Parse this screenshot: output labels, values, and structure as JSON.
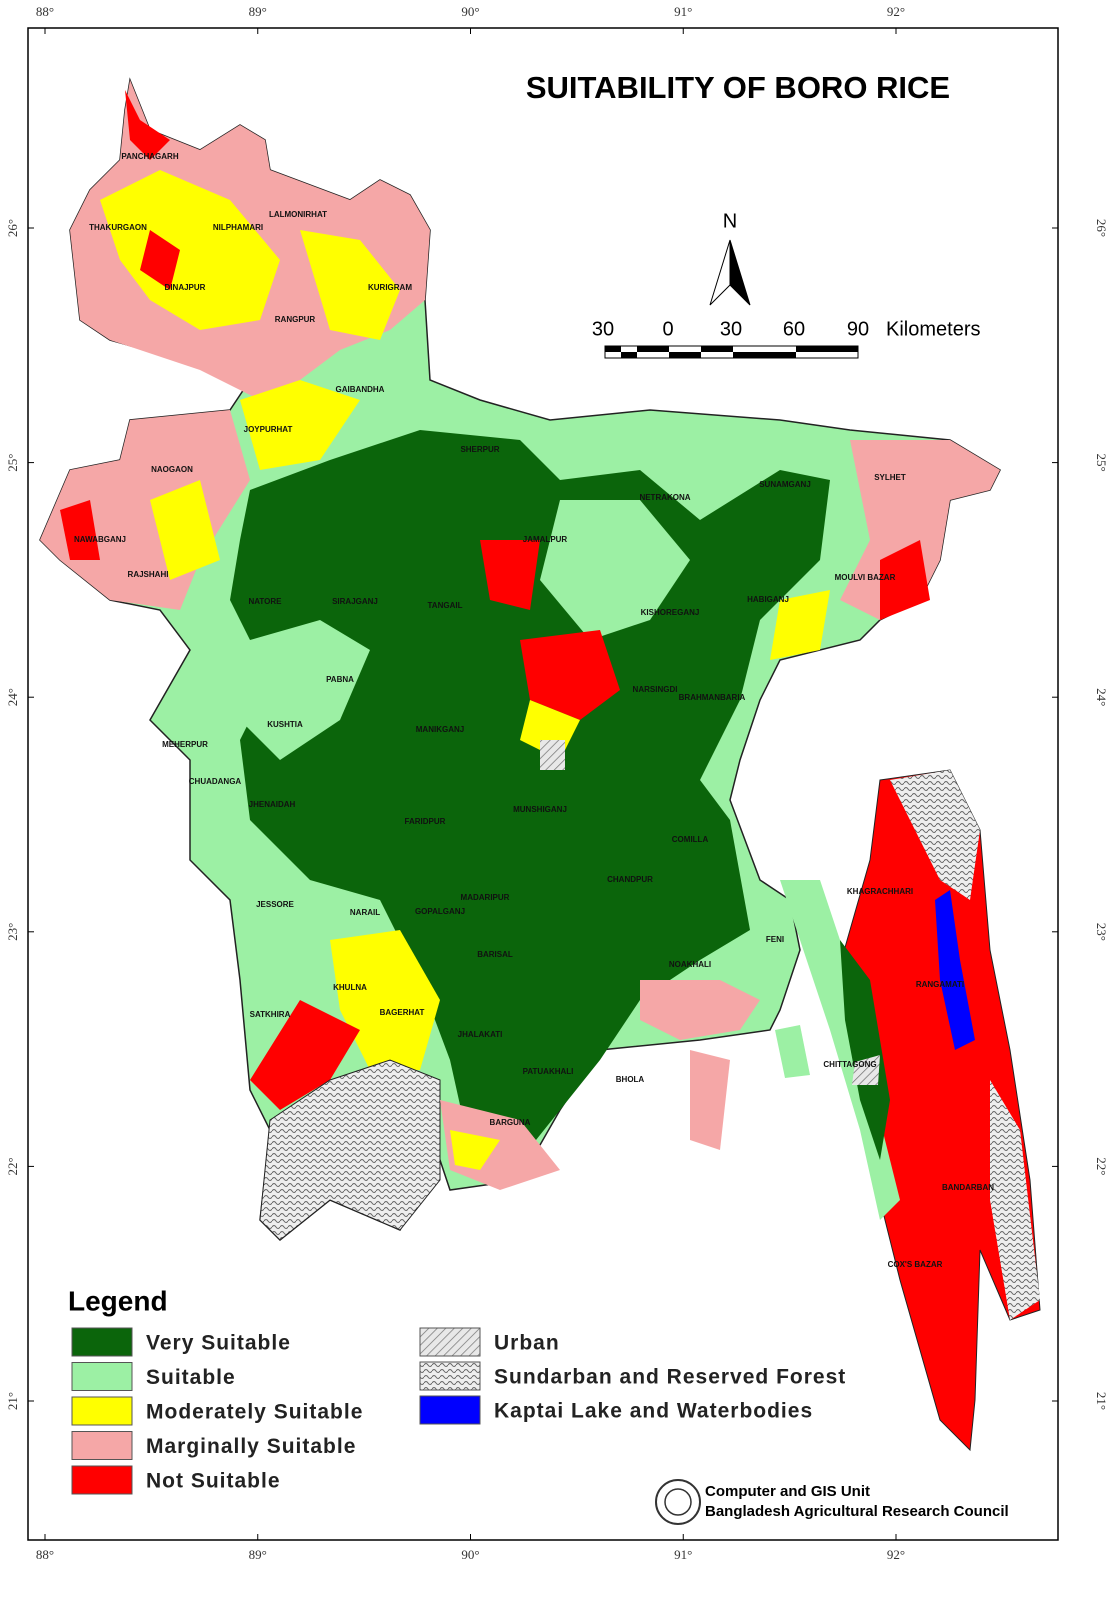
{
  "map": {
    "title": "SUITABILITY OF BORO RICE",
    "north": "N",
    "scale": {
      "labels": [
        "30",
        "0",
        "30",
        "60",
        "90"
      ],
      "unit": "Kilometers"
    },
    "lon_ticks": [
      {
        "value": 88,
        "label": "88°"
      },
      {
        "value": 89,
        "label": "89°"
      },
      {
        "value": 90,
        "label": "90°"
      },
      {
        "value": 91,
        "label": "91°"
      },
      {
        "value": 92,
        "label": "92°"
      }
    ],
    "lat_ticks": [
      {
        "value": 26,
        "label": "26°"
      },
      {
        "value": 25,
        "label": "25°"
      },
      {
        "value": 24,
        "label": "24°"
      },
      {
        "value": 23,
        "label": "23°"
      },
      {
        "value": 22,
        "label": "22°"
      },
      {
        "value": 21,
        "label": "21°"
      }
    ],
    "districts": [
      "PANCHAGARH",
      "THAKURGAON",
      "NILPHAMARI",
      "LALMONIRHAT",
      "DINAJPUR",
      "KURIGRAM",
      "RANGPUR",
      "GAIBANDHA",
      "JOYPURHAT",
      "NAOGAON",
      "SHERPUR",
      "NETRAKONA",
      "SUNAMGANJ",
      "SYLHET",
      "NAWABGANJ",
      "RAJSHAHI",
      "JAMALPUR",
      "MOULVI BAZAR",
      "NATORE",
      "SIRAJGANJ",
      "TANGAIL",
      "KISHOREGANJ",
      "HABIGANJ",
      "PABNA",
      "NARSINGDI",
      "BRAHMANBARIA",
      "MEHERPUR",
      "KUSHTIA",
      "MANIKGANJ",
      "CHUADANGA",
      "JHENAIDAH",
      "MUNSHIGANJ",
      "FARIDPUR",
      "COMILLA",
      "CHANDPUR",
      "KHAGRACHHARI",
      "JESSORE",
      "NARAIL",
      "GOPALGANJ",
      "MADARIPUR",
      "FENI",
      "BARISAL",
      "NOAKHALI",
      "KHULNA",
      "BAGERHAT",
      "RANGAMATI",
      "SATKHIRA",
      "JHALAKATI",
      "PATUAKHALI",
      "BHOLA",
      "CHITTAGONG",
      "BARGUNA",
      "BANDARBAN",
      "COX'S BAZAR"
    ],
    "legend": {
      "title": "Legend",
      "items": [
        {
          "name": "Very Suitable",
          "color": "#0b650b"
        },
        {
          "name": "Suitable",
          "color": "#9cf0a4"
        },
        {
          "name": "Moderately Suitable",
          "color": "#ffff00"
        },
        {
          "name": "Marginally Suitable",
          "color": "#f5a7a7"
        },
        {
          "name": "Not Suitable",
          "color": "#ff0000"
        },
        {
          "name": "Urban",
          "pattern": "hatch"
        },
        {
          "name": "Sundarban and Reserved Forest",
          "pattern": "wave"
        },
        {
          "name": "Kaptai Lake and Waterbodies",
          "color": "#0000ff"
        }
      ]
    },
    "credit": [
      "Computer and GIS Unit",
      "Bangladesh Agricultural Research Council"
    ]
  }
}
